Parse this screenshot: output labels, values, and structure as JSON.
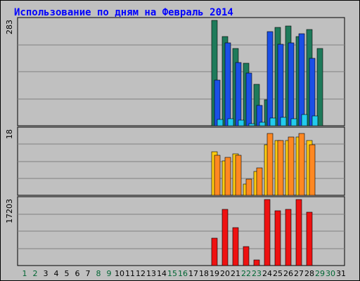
{
  "chart_data": {
    "type": "bar",
    "title": "Использование по дням на Февраль 2014",
    "categories": [
      "1",
      "2",
      "3",
      "4",
      "5",
      "6",
      "7",
      "8",
      "9",
      "10",
      "11",
      "12",
      "13",
      "14",
      "15",
      "16",
      "17",
      "18",
      "19",
      "20",
      "21",
      "22",
      "23",
      "24",
      "25",
      "26",
      "27",
      "28",
      "29",
      "30",
      "31"
    ],
    "weekend_days": [
      "1",
      "2",
      "8",
      "9",
      "15",
      "16",
      "22",
      "23",
      "29",
      "30"
    ],
    "colors": {
      "background": "#c0c0c0",
      "title": "#0000ff",
      "weekday_label": "#000000",
      "weekend_label": "#006633",
      "gridline": "#808080"
    },
    "panels": [
      {
        "max_label": "283",
        "ymax": 283,
        "series": [
          {
            "color": "#1e7a5a",
            "values": [
              0,
              0,
              0,
              0,
              0,
              0,
              0,
              0,
              0,
              0,
              0,
              0,
              0,
              0,
              0,
              0,
              0,
              0,
              283,
              240,
              207,
              167,
              112,
              70,
              265,
              268,
              240,
              258,
              207,
              0,
              0
            ]
          },
          {
            "color": "#1a4fe6",
            "values": [
              0,
              0,
              0,
              0,
              0,
              0,
              0,
              0,
              0,
              0,
              0,
              0,
              0,
              0,
              0,
              0,
              0,
              0,
              123,
              222,
              170,
              142,
              55,
              253,
              218,
              222,
              247,
              182,
              0,
              0,
              0
            ]
          },
          {
            "color": "#22ccee",
            "values": [
              0,
              0,
              0,
              0,
              0,
              0,
              0,
              0,
              0,
              0,
              0,
              0,
              0,
              0,
              0,
              0,
              0,
              0,
              17,
              18,
              15,
              5,
              9,
              20,
              22,
              18,
              30,
              27,
              0,
              0,
              0
            ]
          }
        ]
      },
      {
        "max_label": "18",
        "ymax": 18,
        "series": [
          {
            "color": "#ffcc11",
            "values": [
              0,
              0,
              0,
              0,
              0,
              0,
              0,
              0,
              0,
              0,
              0,
              0,
              0,
              0,
              0,
              0,
              0,
              0,
              12,
              9.5,
              11.5,
              3,
              6.5,
              14,
              15,
              15,
              16,
              15,
              0,
              0,
              0
            ]
          },
          {
            "color": "#ff8822",
            "values": [
              0,
              0,
              0,
              0,
              0,
              0,
              0,
              0,
              0,
              0,
              0,
              0,
              0,
              0,
              0,
              0,
              0,
              0,
              11,
              10.5,
              11,
              4.5,
              7.5,
              17,
              15,
              16,
              17,
              14,
              0,
              0,
              0
            ]
          }
        ]
      },
      {
        "max_label": "17203",
        "ymax": 17203,
        "series": [
          {
            "color": "#ee1111",
            "values": [
              0,
              0,
              0,
              0,
              0,
              0,
              0,
              0,
              0,
              0,
              0,
              0,
              0,
              0,
              0,
              0,
              0,
              0,
              7170,
              14600,
              9800,
              5000,
              1550,
              17203,
              14300,
              14700,
              17203,
              13900,
              0,
              0,
              0
            ]
          }
        ]
      }
    ]
  }
}
